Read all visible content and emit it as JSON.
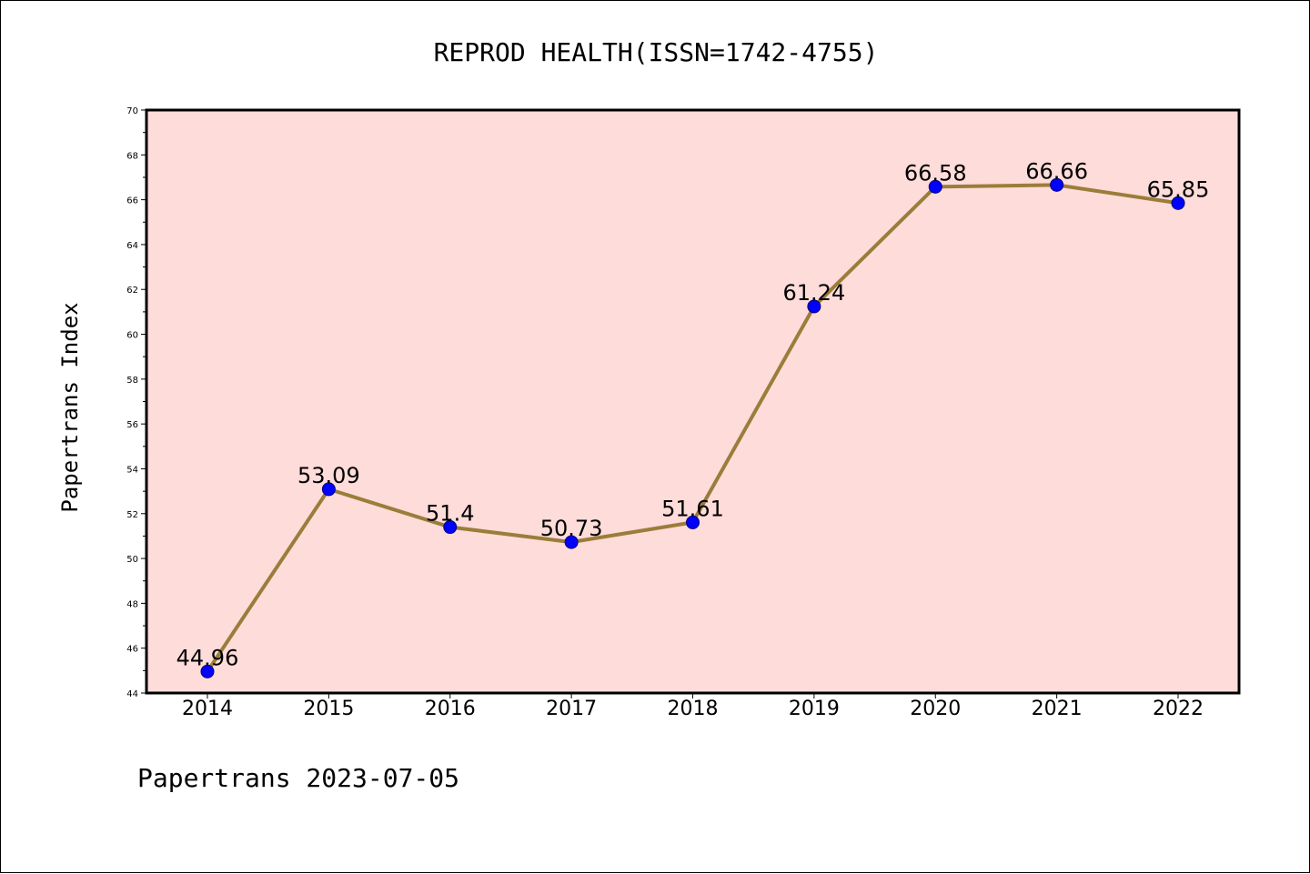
{
  "chart_data": {
    "type": "line",
    "title": "REPROD HEALTH(ISSN=1742-4755)",
    "ylabel": "Papertrans Index",
    "xlabel": "",
    "footer": "Papertrans 2023-07-05",
    "categories": [
      "2014",
      "2015",
      "2016",
      "2017",
      "2018",
      "2019",
      "2020",
      "2021",
      "2022"
    ],
    "values": [
      44.96,
      53.09,
      51.4,
      50.73,
      51.61,
      61.24,
      66.58,
      66.66,
      65.85
    ],
    "value_labels": [
      "44.96",
      "53.09",
      "51.4",
      "50.73",
      "51.61",
      "61.24",
      "66.58",
      "66.66",
      "65.85"
    ],
    "ylim": [
      44,
      70
    ],
    "yticks": [
      44,
      46,
      48,
      50,
      52,
      54,
      56,
      58,
      60,
      62,
      64,
      66,
      68,
      70
    ],
    "grid": false,
    "legend": "none",
    "colors": {
      "plot_background": "#fddcda",
      "line": "#9b7d3a",
      "marker": "#0000ff",
      "marker_edge": "#00007a"
    }
  }
}
